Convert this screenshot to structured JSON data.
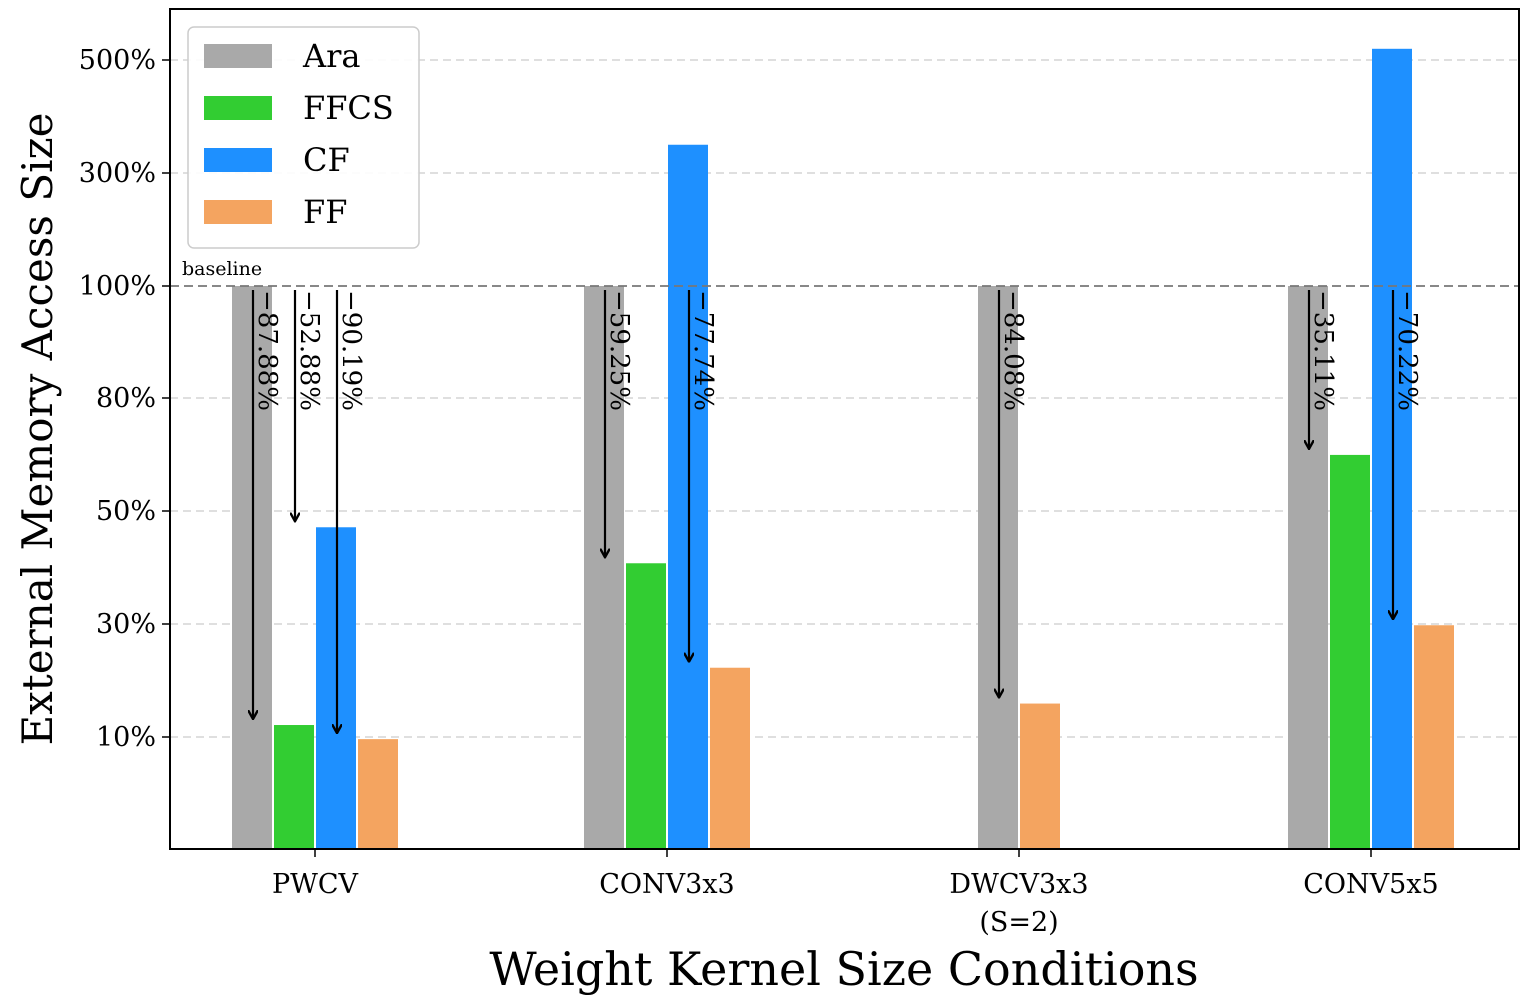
{
  "chart_data": {
    "type": "bar",
    "xlabel": "Weight Kernel Size Conditions",
    "ylabel": "External Memory Access Size",
    "ytick_labels": [
      "10%",
      "30%",
      "50%",
      "80%",
      "100%",
      "300%",
      "500%"
    ],
    "ytick_values": [
      10,
      30,
      50,
      80,
      100,
      300,
      500
    ],
    "grid": "dashed horizontal",
    "legend_position": "top-left",
    "categories": [
      {
        "label": "PWCV",
        "sublabel": ""
      },
      {
        "label": "CONV3x3",
        "sublabel": ""
      },
      {
        "label": "DWCV3x3",
        "sublabel": "(S=2)"
      },
      {
        "label": "CONV5x5",
        "sublabel": ""
      }
    ],
    "series": [
      {
        "name": "Ara",
        "color": "#a9a9a9",
        "values": [
          100,
          100,
          100,
          100
        ]
      },
      {
        "name": "FFCS",
        "color": "#32cd32",
        "values": [
          12.12,
          40.75,
          null,
          64.89
        ]
      },
      {
        "name": "CF",
        "color": "#1e90ff",
        "values": [
          47.12,
          350,
          null,
          520
        ]
      },
      {
        "name": "FF",
        "color": "#f4a460",
        "values": [
          9.81,
          22.26,
          15.92,
          29.78
        ]
      }
    ],
    "baseline": {
      "label": "baseline",
      "value": 100
    },
    "annotations": [
      {
        "category": 0,
        "series": "FFCS",
        "text": "−87.88%"
      },
      {
        "category": 0,
        "series": "CF",
        "text": "−52.88%"
      },
      {
        "category": 0,
        "series": "FF",
        "text": "−90.19%"
      },
      {
        "category": 1,
        "series": "FFCS",
        "text": "−59.25%"
      },
      {
        "category": 1,
        "series": "FF",
        "text": "−77.74%"
      },
      {
        "category": 2,
        "series": "FF",
        "text": "−84.08%"
      },
      {
        "category": 3,
        "series": "FFCS",
        "text": "−35.11%"
      },
      {
        "category": 3,
        "series": "FF",
        "text": "−70.22%"
      }
    ]
  }
}
